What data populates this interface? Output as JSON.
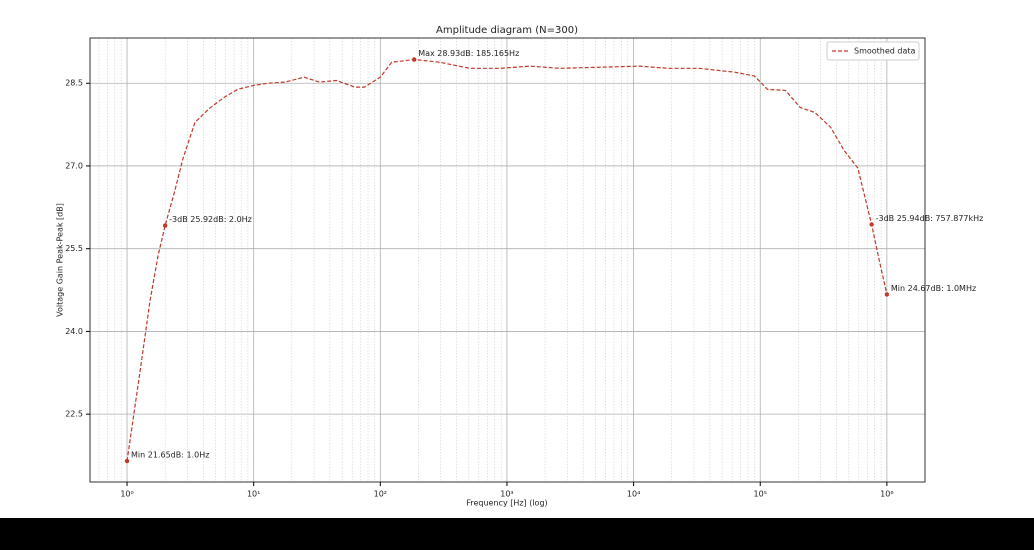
{
  "chart_data": {
    "type": "line",
    "title": "Amplitude diagram (N=300)",
    "x_label": "Frequency [Hz] (log)",
    "y_label": "Voltage Gain Peak-Peak [dB]",
    "xscale": "log",
    "xlim": [
      0.51,
      2000000
    ],
    "ylim": [
      21.27,
      29.32
    ],
    "xticks": [
      {
        "value": 1,
        "label": "10⁰"
      },
      {
        "value": 10,
        "label": "10¹"
      },
      {
        "value": 100,
        "label": "10²"
      },
      {
        "value": 1000,
        "label": "10³"
      },
      {
        "value": 10000,
        "label": "10⁴"
      },
      {
        "value": 100000,
        "label": "10⁵"
      },
      {
        "value": 1000000,
        "label": "10⁶"
      }
    ],
    "yticks": [
      22.5,
      {
        "value": 24,
        "label": "24.0"
      },
      25.5,
      {
        "value": 27,
        "label": "27.0"
      },
      28.5
    ],
    "grid": true,
    "minor_grid": true,
    "legend": "upper right",
    "x": [
      1,
      1.27,
      1.52,
      1.76,
      2.0,
      2.39,
      2.77,
      3.44,
      4.5,
      5.9,
      7.5,
      10,
      13,
      17.7,
      25,
      33,
      45,
      63,
      75,
      100,
      123,
      185.165,
      295,
      510,
      880,
      1520,
      2620,
      5400,
      11100,
      19000,
      33000,
      63000,
      90000,
      114000,
      158000,
      207000,
      270000,
      360000,
      460000,
      590000,
      757877,
      870000,
      1000000
    ],
    "series": [
      {
        "name": "Smoothed data",
        "color": "#c0392b",
        "values": [
          21.65,
          23.29,
          24.56,
          25.38,
          25.92,
          26.56,
          27.14,
          27.79,
          28.05,
          28.25,
          28.39,
          28.46,
          28.5,
          28.52,
          28.61,
          28.52,
          28.55,
          28.43,
          28.43,
          28.61,
          28.88,
          28.93,
          28.88,
          28.77,
          28.77,
          28.81,
          28.77,
          28.79,
          28.81,
          28.77,
          28.77,
          28.7,
          28.63,
          28.39,
          28.37,
          28.06,
          27.97,
          27.7,
          27.28,
          26.96,
          25.94,
          25.29,
          24.67
        ]
      }
    ],
    "annotations": [
      {
        "x": 1,
        "y": 21.65,
        "text": "Min 21.65dB: 1.0Hz"
      },
      {
        "x": 2.0,
        "y": 25.92,
        "text": "-3dB 25.92dB: 2.0Hz"
      },
      {
        "x": 185.165,
        "y": 28.93,
        "text": "Max 28.93dB: 185.165Hz"
      },
      {
        "x": 757877,
        "y": 25.94,
        "text": "-3dB 25.94dB: 757.877kHz"
      },
      {
        "x": 1000000,
        "y": 24.67,
        "text": "Min 24.67dB: 1.0MHz"
      }
    ]
  }
}
